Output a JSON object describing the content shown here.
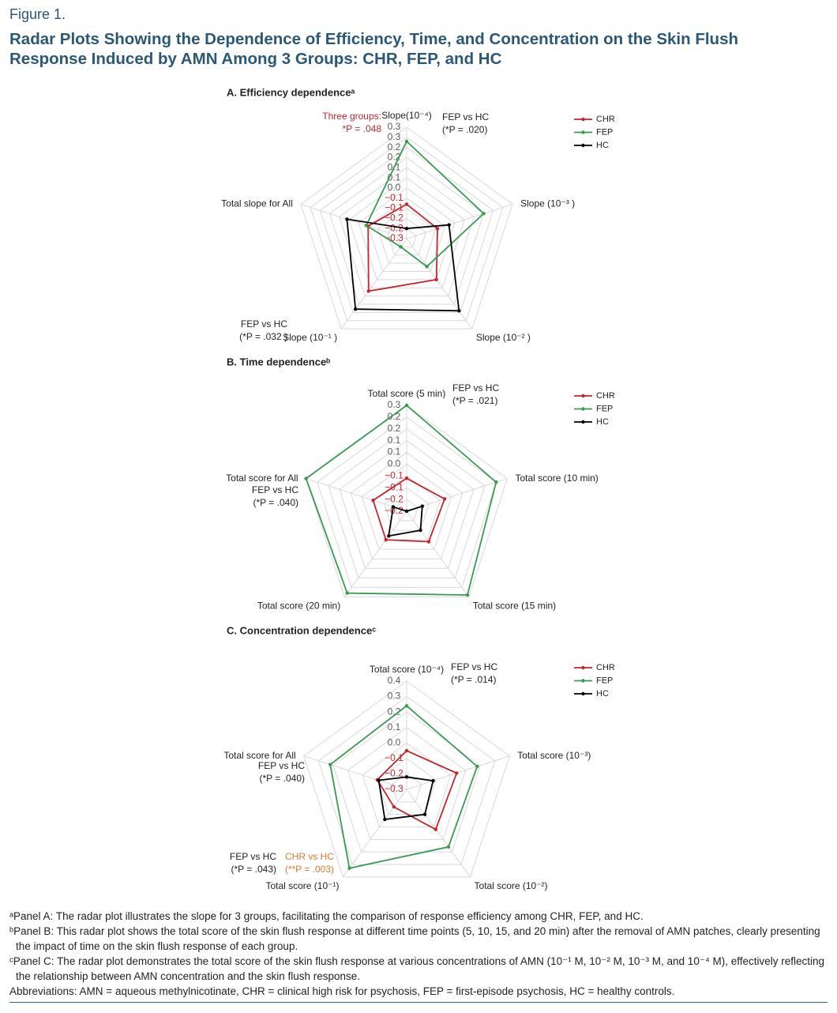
{
  "figure": {
    "label": "Figure 1.",
    "title": [
      "Radar Plots Showing the Dependence of Efficiency, Time, and Concentration on the Skin Flush",
      "Response Induced by AMN Among 3 Groups: CHR, FEP, and HC"
    ]
  },
  "chart_data": [
    {
      "type": "radar",
      "title": "A. Efficiency dependenceᵃ",
      "categories": [
        "Slope(10⁻⁴)",
        "Slope (10⁻³ )",
        "Slope (10⁻² )",
        "Slope (10⁻¹ )",
        "Total slope for All"
      ],
      "rlim": [
        -0.25,
        0.3
      ],
      "rticks": [
        0.3,
        {
          "value": 0.25,
          "label": "0.3"
        },
        0.2,
        {
          "value": 0.15,
          "label": "0.2"
        },
        0.1,
        {
          "value": 0.05,
          "label": "0.1"
        },
        {
          "value": 0,
          "label": "0.0"
        },
        {
          "value": -0.05,
          "label": "−0.1"
        },
        {
          "value": -0.1,
          "label": "−0.1"
        },
        {
          "value": -0.15,
          "label": "−0.2"
        },
        {
          "value": -0.2,
          "label": "−0.2"
        },
        {
          "value": -0.25,
          "label": "−0.3"
        }
      ],
      "grid": true,
      "legend": "upper right",
      "series": [
        {
          "name": "CHR",
          "color": "#c4262e",
          "values": [
            -0.08,
            -0.09,
            0.0,
            0.07,
            -0.05
          ]
        },
        {
          "name": "FEP",
          "color": "#3a9a52",
          "values": [
            0.23,
            0.15,
            -0.08,
            -0.2,
            -0.04
          ]
        },
        {
          "name": "HC",
          "color": "#000000",
          "values": [
            -0.2,
            -0.03,
            0.19,
            0.18,
            0.06
          ]
        }
      ],
      "annotations": [
        {
          "lines": [
            "Three groups:",
            "*P = .048"
          ],
          "color": "#c4262e"
        },
        {
          "lines": [
            "FEP vs HC",
            "(*P = .020)"
          ],
          "color": "#222222"
        },
        {
          "lines": [
            "FEP vs HC",
            "(*P = .032 )"
          ],
          "color": "#222222"
        }
      ]
    },
    {
      "type": "radar",
      "title": "B. Time dependenceᵇ",
      "categories": [
        "Total score (5 min)",
        "Total score (10 min)",
        "Total score (15 min)",
        "Total score (20 min)",
        "Total score for All"
      ],
      "rlim": [
        -0.2,
        0.25
      ],
      "rticks": [
        {
          "value": 0.25,
          "label": "0.3"
        },
        0.2,
        {
          "value": 0.15,
          "label": "0.2"
        },
        0.1,
        {
          "value": 0.05,
          "label": "0.1"
        },
        {
          "value": 0,
          "label": "0.0"
        },
        {
          "value": -0.05,
          "label": "−0.1"
        },
        {
          "value": -0.1,
          "label": "−0.1"
        },
        {
          "value": -0.15,
          "label": "−0.2"
        },
        {
          "value": -0.2,
          "label": "−0.2"
        }
      ],
      "grid": true,
      "legend": "upper right",
      "series": [
        {
          "name": "CHR",
          "color": "#c4262e",
          "values": [
            -0.06,
            -0.03,
            -0.04,
            -0.05,
            -0.05
          ]
        },
        {
          "name": "FEP",
          "color": "#3a9a52",
          "values": [
            0.25,
            0.2,
            0.24,
            0.23,
            0.25
          ]
        },
        {
          "name": "HC",
          "color": "#000000",
          "values": [
            -0.2,
            -0.13,
            -0.1,
            -0.07,
            -0.14
          ]
        }
      ],
      "annotations": [
        {
          "lines": [
            "FEP vs HC",
            "(*P = .021)"
          ],
          "color": "#222222"
        },
        {
          "lines": [
            "FEP vs HC",
            "(*P = .040)"
          ],
          "color": "#222222"
        }
      ]
    },
    {
      "type": "radar",
      "title": "C. Concentration dependenceᶜ",
      "categories": [
        "Total score (10⁻⁴)",
        "Total score (10⁻³)",
        "Total score (10⁻²)",
        "Total score (10⁻¹)",
        "Total score for All"
      ],
      "rlim": [
        -0.3,
        0.4
      ],
      "rticks": [
        0.4,
        0.3,
        0.2,
        0.1,
        {
          "value": 0,
          "label": "0.0"
        },
        {
          "value": -0.1,
          "label": "−0.1"
        },
        {
          "value": -0.2,
          "label": "−0.2"
        },
        {
          "value": -0.3,
          "label": "−0.3"
        }
      ],
      "grid": true,
      "legend": "upper right",
      "series": [
        {
          "name": "CHR",
          "color": "#c4262e",
          "values": [
            -0.05,
            0.04,
            0.02,
            -0.16,
            -0.1
          ]
        },
        {
          "name": "FEP",
          "color": "#3a9a52",
          "values": [
            0.24,
            0.18,
            0.16,
            0.33,
            0.22
          ]
        },
        {
          "name": "HC",
          "color": "#000000",
          "values": [
            -0.22,
            -0.12,
            -0.1,
            -0.06,
            -0.11
          ]
        }
      ],
      "annotations": [
        {
          "lines": [
            "FEP vs HC",
            "(*P = .014)"
          ],
          "color": "#222222"
        },
        {
          "lines": [
            "FEP vs HC",
            "(*P = .040)"
          ],
          "color": "#222222"
        },
        {
          "lines": [
            "FEP vs HC",
            "(*P = .043)"
          ],
          "color": "#222222"
        },
        {
          "lines": [
            "CHR vs HC",
            "(**P = .003)"
          ],
          "color": "#e07a2e"
        }
      ]
    }
  ],
  "footnotes": [
    "ᵃPanel A: The radar plot illustrates the slope for 3 groups, facilitating the comparison of response efficiency among CHR, FEP, and HC.",
    "ᵇPanel B: This radar plot shows the total score of the skin flush response at different time points (5, 10, 15, and 20 min) after the removal of AMN patches, clearly presenting the impact of time on the skin flush response of each group.",
    "ᶜPanel C: The radar plot demonstrates the total score of the skin flush response at various concentrations of AMN (10⁻¹ M, 10⁻² M, 10⁻³ M, and 10⁻⁴ M), effectively reflecting the relationship between AMN concentration and the skin flush response.",
    "Abbreviations: AMN = aqueous methylnicotinate, CHR = clinical high risk for psychosis, FEP = first-episode psychosis, HC = healthy controls."
  ]
}
